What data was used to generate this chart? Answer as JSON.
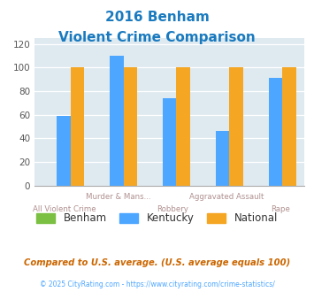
{
  "title_line1": "2016 Benham",
  "title_line2": "Violent Crime Comparison",
  "title_color": "#1a7abf",
  "cat_labels_top": [
    "",
    "Murder & Mans...",
    "",
    "Aggravated Assault",
    ""
  ],
  "cat_labels_bot": [
    "All Violent Crime",
    "",
    "Robbery",
    "",
    "Rape"
  ],
  "benham_values": [
    0,
    0,
    0,
    0,
    0
  ],
  "kentucky_values": [
    59,
    110,
    74,
    46,
    91
  ],
  "national_values": [
    100,
    100,
    100,
    100,
    100
  ],
  "benham_color": "#7bc043",
  "kentucky_color": "#4da6ff",
  "national_color": "#f5a623",
  "ylim": [
    0,
    125
  ],
  "yticks": [
    0,
    20,
    40,
    60,
    80,
    100,
    120
  ],
  "plot_bg": "#deeaf0",
  "footer_text": "Compared to U.S. average. (U.S. average equals 100)",
  "footer_color": "#cc6600",
  "copyright_text": "© 2025 CityRating.com - https://www.cityrating.com/crime-statistics/",
  "copyright_color": "#4da6ff",
  "label_color": "#b09090",
  "legend_labels": [
    "Benham",
    "Kentucky",
    "National"
  ]
}
